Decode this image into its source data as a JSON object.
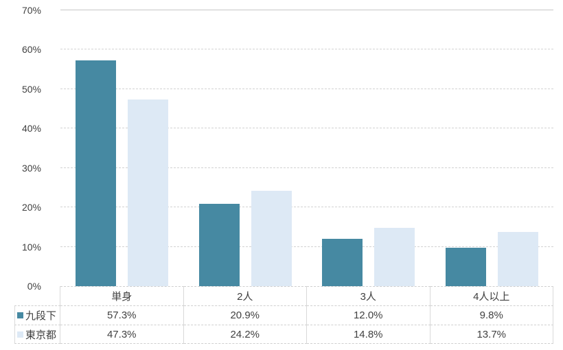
{
  "colors": {
    "series1": "#4689A2",
    "series2": "#DDE9F5",
    "gridline": "#D2D2D2",
    "table_border": "#D9D9D9",
    "text": "#404040"
  },
  "chart_data": {
    "type": "bar",
    "title": "",
    "xlabel": "",
    "ylabel": "",
    "categories": [
      "単身",
      "2人",
      "3人",
      "4人以上"
    ],
    "series": [
      {
        "name": "九段下",
        "color": "#4689A2",
        "values": [
          57.3,
          20.9,
          12.0,
          9.8
        ],
        "labels": [
          "57.3%",
          "20.9%",
          "12.0%",
          "9.8%"
        ]
      },
      {
        "name": "東京都",
        "color": "#DDE9F5",
        "values": [
          47.3,
          24.2,
          14.8,
          13.7
        ],
        "labels": [
          "47.3%",
          "24.2%",
          "14.8%",
          "13.7%"
        ]
      }
    ],
    "ylim": [
      0,
      70
    ],
    "ytick_step": 10,
    "ytick_labels": [
      "0%",
      "10%",
      "20%",
      "30%",
      "40%",
      "50%",
      "60%",
      "70%"
    ],
    "grid": true,
    "gridline_style": "dashed",
    "legend_position": "table-left"
  }
}
